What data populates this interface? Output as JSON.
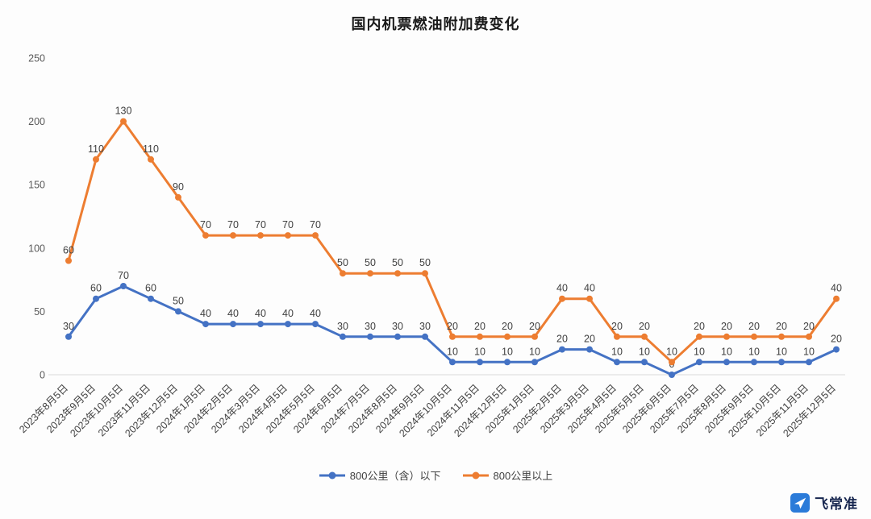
{
  "title": "国内机票燃油附加费变化",
  "logo": {
    "text": "飞常准"
  },
  "colors": {
    "series_blue": "#4472C4",
    "series_orange": "#ED7D31",
    "axis_text": "#595959",
    "label_text": "#404040",
    "axis_line": "#d9d9d9",
    "logo_blue": "#2b7bd9"
  },
  "chart_data": {
    "type": "line",
    "stacked": true,
    "note": "orange series (800公里以上) is plotted stacked on top of the blue series; data labels show the per-series values",
    "title": "国内机票燃油附加费变化",
    "xlabel": "",
    "ylabel": "",
    "ylim": [
      0,
      250
    ],
    "yticks": [
      0,
      50,
      100,
      150,
      200,
      250
    ],
    "grid": false,
    "legend_position": "bottom",
    "categories": [
      "2023年8月5日",
      "2023年9月5日",
      "2023年10月5日",
      "2023年11月5日",
      "2023年12月5日",
      "2024年1月5日",
      "2024年2月5日",
      "2024年3月5日",
      "2024年4月5日",
      "2024年5月5日",
      "2024年6月5日",
      "2024年7月5日",
      "2024年8月5日",
      "2024年9月5日",
      "2024年10月5日",
      "2024年11月5日",
      "2024年12月5日",
      "2025年1月5日",
      "2025年2月5日",
      "2025年3月5日",
      "2025年4月5日",
      "2025年5月5日",
      "2025年6月5日",
      "2025年7月5日",
      "2025年8月5日",
      "2025年9月5日",
      "2025年10月5日",
      "2025年11月5日",
      "2025年12月5日"
    ],
    "series": [
      {
        "name": "800公里（含）以下",
        "color": "#4472C4",
        "values": [
          30,
          60,
          70,
          60,
          50,
          40,
          40,
          40,
          40,
          40,
          30,
          30,
          30,
          30,
          10,
          10,
          10,
          10,
          20,
          20,
          10,
          10,
          0,
          10,
          10,
          10,
          10,
          10,
          20
        ]
      },
      {
        "name": "800公里以上",
        "color": "#ED7D31",
        "values": [
          60,
          110,
          130,
          110,
          90,
          70,
          70,
          70,
          70,
          70,
          50,
          50,
          50,
          50,
          20,
          20,
          20,
          20,
          40,
          40,
          20,
          20,
          10,
          20,
          20,
          20,
          20,
          20,
          40
        ]
      }
    ]
  }
}
